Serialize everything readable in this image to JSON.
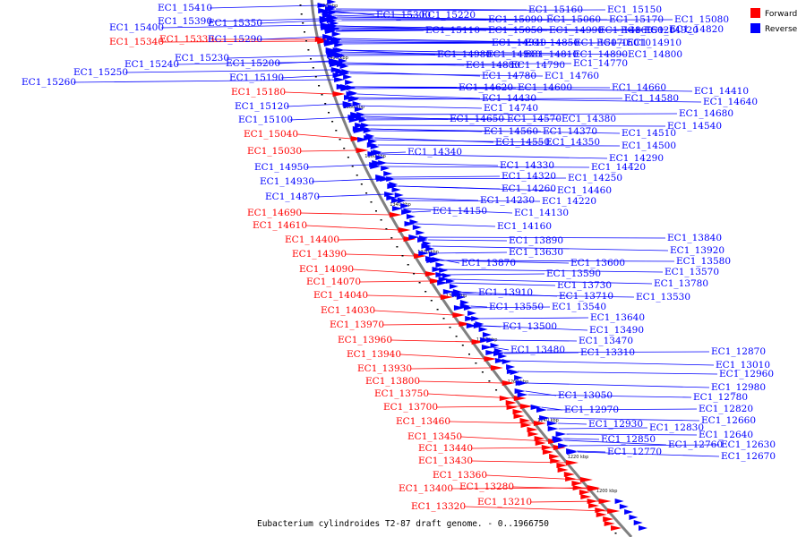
{
  "caption": "Eubacterium cylindroides T2-87 draft genome. - 0..1966750",
  "legend": [
    {
      "label": "Forward",
      "color": "#ff0000"
    },
    {
      "label": "Reverse",
      "color": "#0000ff"
    }
  ],
  "colors": {
    "forward": "#ff0000",
    "reverse": "#0000ff",
    "backbone": "#808080",
    "highlight": "#ff0000"
  },
  "ticks": [
    "1420 kbp",
    "1400 kbp",
    "1380 kbp",
    "1360 kbp",
    "1340 kbp",
    "1320 kbp",
    "1300 kbp",
    "1280 kbp",
    "1260 kbp",
    "1240 kbp",
    "1220 kbp",
    "1200 kbp"
  ],
  "forward_labels": [
    "EC1_15340",
    "EC1_15180",
    "EC1_15040",
    "EC1_15030",
    "EC1_14690",
    "EC1_14610",
    "EC1_14400",
    "EC1_14390",
    "EC1_14090",
    "EC1_14070",
    "EC1_14040",
    "EC1_14030",
    "EC1_13970",
    "EC1_13960",
    "EC1_13940",
    "EC1_13930",
    "EC1_13800",
    "EC1_13750",
    "EC1_13700",
    "EC1_13460",
    "EC1_13450",
    "EC1_13440",
    "EC1_13430",
    "EC1_13360",
    "EC1_13400",
    "EC1_13280",
    "EC1_13320",
    "EC1_13210"
  ],
  "highlighted_label": "EC1_15330",
  "reverse_labels_left": [
    "EC1_15410",
    "EC1_15400",
    "EC1_15390",
    "EC1_15350",
    "EC1_15290",
    "EC1_15240",
    "EC1_15230",
    "EC1_15250",
    "EC1_15260",
    "EC1_15200",
    "EC1_15190",
    "EC1_15120",
    "EC1_15100",
    "EC1_14950",
    "EC1_14930",
    "EC1_14870"
  ],
  "reverse_labels_right": [
    "EC1_15300",
    "EC1_15220",
    "EC1_15160",
    "EC1_15150",
    "EC1_15090",
    "EC1_15060",
    "EC1_15170",
    "EC1_15110",
    "EC1_15050",
    "EC1_14990",
    "EC1_14860",
    "EC1_15080",
    "EC1_15020",
    "EC1_14920",
    "EC1_14940",
    "EC1_14850",
    "EC1_15070",
    "EC1_15010",
    "EC1_14910",
    "EC1_14820",
    "EC1_14980",
    "EC1_14900",
    "EC1_14810",
    "EC1_14890",
    "EC1_14800",
    "EC1_14880",
    "EC1_14790",
    "EC1_14770",
    "EC1_14780",
    "EC1_14760",
    "EC1_14620",
    "EC1_14600",
    "EC1_14430",
    "EC1_14740",
    "EC1_14660",
    "EC1_14580",
    "EC1_14410",
    "EC1_14650",
    "EC1_14570",
    "EC1_14380",
    "EC1_14640",
    "EC1_14560",
    "EC1_14370",
    "EC1_14680",
    "EC1_14550",
    "EC1_14350",
    "EC1_14540",
    "EC1_14340",
    "EC1_14510",
    "EC1_14330",
    "EC1_14500",
    "EC1_14320",
    "EC1_14290",
    "EC1_14260",
    "EC1_14420",
    "EC1_14250",
    "EC1_14460",
    "EC1_14230",
    "EC1_14220",
    "EC1_14150",
    "EC1_14130",
    "EC1_14160",
    "EC1_13890",
    "EC1_13630",
    "EC1_13870",
    "EC1_13600",
    "EC1_13840",
    "EC1_13590",
    "EC1_13920",
    "EC1_13730",
    "EC1_13580",
    "EC1_13910",
    "EC1_13710",
    "EC1_13570",
    "EC1_13550",
    "EC1_13540",
    "EC1_13780",
    "EC1_13530",
    "EC1_13500",
    "EC1_13640",
    "EC1_13490",
    "EC1_13480",
    "EC1_13470",
    "EC1_13310",
    "EC1_13050",
    "EC1_12970",
    "EC1_12930",
    "EC1_12870",
    "EC1_13010",
    "EC1_12960",
    "EC1_12850",
    "EC1_12830",
    "EC1_12980",
    "EC1_12780",
    "EC1_12770",
    "EC1_12820",
    "EC1_12760",
    "EC1_12660",
    "EC1_12640",
    "EC1_12630",
    "EC1_12670"
  ]
}
